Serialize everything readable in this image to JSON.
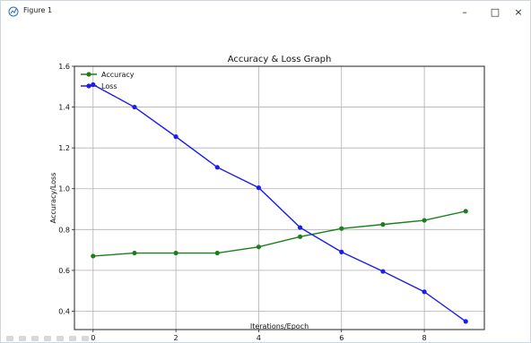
{
  "window": {
    "title": "Figure 1",
    "minimize_glyph": "–",
    "maximize_glyph": "□",
    "close_glyph": "×"
  },
  "chart_data": {
    "type": "line",
    "title": "Accuracy & Loss Graph",
    "xlabel": "Iterations/Epoch",
    "ylabel": "Accuracy/Loss",
    "x": [
      0,
      1,
      2,
      3,
      4,
      5,
      6,
      7,
      8,
      9
    ],
    "xticks": [
      0,
      2,
      4,
      6,
      8
    ],
    "yticks": [
      0.4,
      0.6,
      0.8,
      1.0,
      1.2,
      1.4,
      1.6
    ],
    "xlim": [
      -0.45,
      9.45
    ],
    "ylim": [
      0.31,
      1.6
    ],
    "grid": true,
    "legend_position": "top-left",
    "series": [
      {
        "name": "Accuracy",
        "color": "#1a7f1a",
        "values": [
          0.67,
          0.685,
          0.685,
          0.685,
          0.715,
          0.765,
          0.805,
          0.825,
          0.845,
          0.89
        ]
      },
      {
        "name": "Loss",
        "color": "#1c1cf0",
        "values": [
          1.51,
          1.4,
          1.255,
          1.105,
          1.005,
          0.81,
          0.69,
          0.595,
          0.495,
          0.35
        ]
      }
    ]
  }
}
